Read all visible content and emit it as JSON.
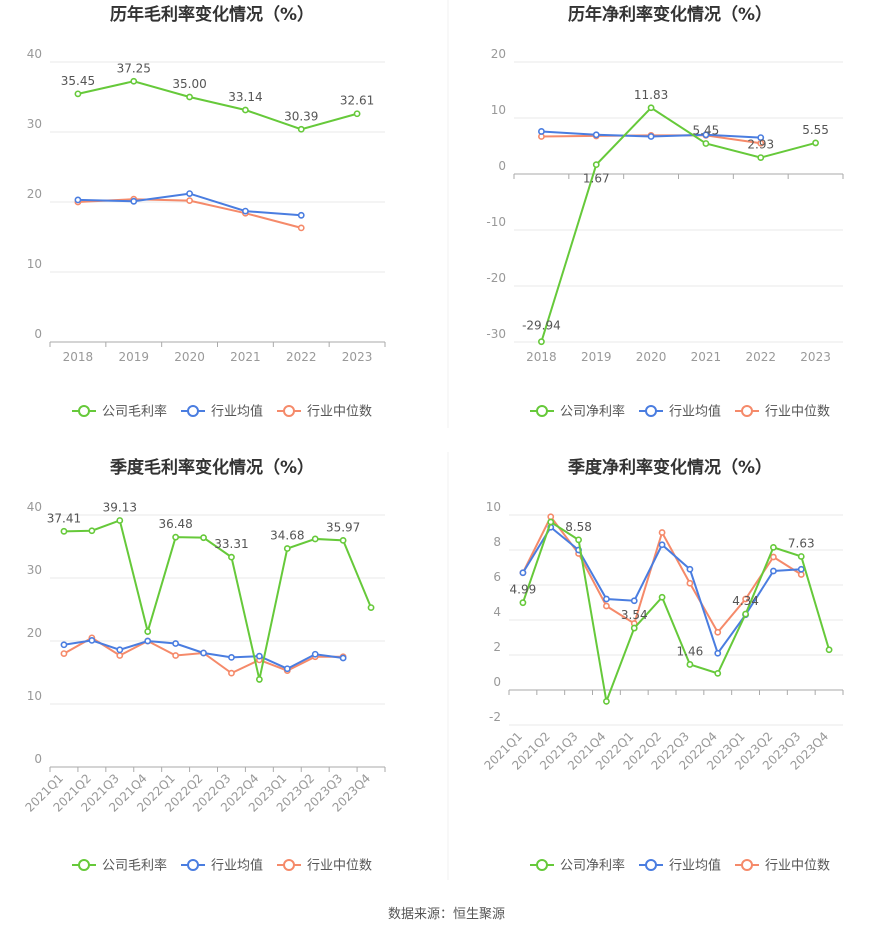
{
  "source_text": "数据来源：恒生聚源",
  "colors": {
    "company": "#66c93a",
    "avg": "#4a7de0",
    "median": "#f58a6a",
    "axis": "#999999",
    "grid": "#e8e8e8",
    "title": "#333333",
    "label": "#555555"
  },
  "chart_data": [
    {
      "type": "line",
      "title": "历年毛利率变化情况（%）",
      "categories": [
        "2018",
        "2019",
        "2020",
        "2021",
        "2022",
        "2023"
      ],
      "ylim": [
        0,
        40
      ],
      "yticks": [
        0,
        10,
        20,
        30,
        40
      ],
      "grid": true,
      "legend_position": "bottom",
      "series": [
        {
          "name": "公司毛利率",
          "values": [
            35.45,
            37.25,
            35.0,
            33.14,
            30.39,
            32.61
          ]
        },
        {
          "name": "行业均值",
          "values": [
            20.3,
            20.1,
            21.2,
            18.7,
            18.1,
            null
          ]
        },
        {
          "name": "行业中位数",
          "values": [
            20.0,
            20.4,
            20.2,
            18.4,
            16.3,
            null
          ]
        }
      ],
      "data_labels": [
        {
          "i": 0,
          "text": "35.45"
        },
        {
          "i": 1,
          "text": "37.25"
        },
        {
          "i": 2,
          "text": "35.00"
        },
        {
          "i": 3,
          "text": "33.14"
        },
        {
          "i": 4,
          "text": "30.39"
        },
        {
          "i": 5,
          "text": "32.61"
        }
      ]
    },
    {
      "type": "line",
      "title": "历年净利率变化情况（%）",
      "categories": [
        "2018",
        "2019",
        "2020",
        "2021",
        "2022",
        "2023"
      ],
      "ylim": [
        -30,
        20
      ],
      "yticks": [
        -30,
        -20,
        -10,
        0,
        10,
        20
      ],
      "grid": true,
      "legend_position": "bottom",
      "series": [
        {
          "name": "公司净利率",
          "values": [
            -29.94,
            1.67,
            11.83,
            5.45,
            2.93,
            5.55
          ]
        },
        {
          "name": "行业均值",
          "values": [
            7.6,
            7.0,
            6.7,
            7.0,
            6.5,
            null
          ]
        },
        {
          "name": "行业中位数",
          "values": [
            6.7,
            6.8,
            6.9,
            6.9,
            5.5,
            null
          ]
        }
      ],
      "data_labels": [
        {
          "i": 0,
          "text": "-29.94",
          "pos": "above"
        },
        {
          "i": 1,
          "text": "1.67",
          "pos": "below"
        },
        {
          "i": 2,
          "text": "11.83"
        },
        {
          "i": 3,
          "text": "5.45"
        },
        {
          "i": 4,
          "text": "2.93"
        },
        {
          "i": 5,
          "text": "5.55"
        }
      ]
    },
    {
      "type": "line",
      "title": "季度毛利率变化情况（%）",
      "categories": [
        "2021Q1",
        "2021Q2",
        "2021Q3",
        "2021Q4",
        "2022Q1",
        "2022Q2",
        "2022Q3",
        "2022Q4",
        "2023Q1",
        "2023Q2",
        "2023Q3",
        "2023Q4"
      ],
      "ylim": [
        0,
        40
      ],
      "yticks": [
        0,
        10,
        20,
        30,
        40
      ],
      "grid": true,
      "legend_position": "bottom",
      "series": [
        {
          "name": "公司毛利率",
          "values": [
            37.41,
            37.5,
            39.13,
            21.5,
            36.48,
            36.4,
            33.31,
            13.9,
            34.68,
            36.2,
            35.97,
            25.3
          ]
        },
        {
          "name": "行业均值",
          "values": [
            19.4,
            20.1,
            18.6,
            20.0,
            19.6,
            18.1,
            17.4,
            17.6,
            15.6,
            17.9,
            17.3,
            null
          ]
        },
        {
          "name": "行业中位数",
          "values": [
            18.0,
            20.5,
            17.7,
            20.0,
            17.7,
            18.1,
            14.9,
            17.0,
            15.3,
            17.5,
            17.5,
            null
          ]
        }
      ],
      "data_labels": [
        {
          "i": 0,
          "text": "37.41"
        },
        {
          "i": 2,
          "text": "39.13"
        },
        {
          "i": 4,
          "text": "36.48"
        },
        {
          "i": 6,
          "text": "33.31"
        },
        {
          "i": 8,
          "text": "34.68"
        },
        {
          "i": 10,
          "text": "35.97"
        }
      ]
    },
    {
      "type": "line",
      "title": "季度净利率变化情况（%）",
      "categories": [
        "2021Q1",
        "2021Q2",
        "2021Q3",
        "2021Q4",
        "2022Q1",
        "2022Q2",
        "2022Q3",
        "2022Q4",
        "2023Q1",
        "2023Q2",
        "2023Q3",
        "2023Q4"
      ],
      "ylim": [
        -2,
        10
      ],
      "yticks": [
        -2,
        0,
        2,
        4,
        6,
        8,
        10
      ],
      "grid": true,
      "legend_position": "bottom",
      "series": [
        {
          "name": "公司净利率",
          "values": [
            4.99,
            9.6,
            8.58,
            -0.65,
            3.54,
            5.3,
            1.46,
            0.95,
            4.34,
            8.15,
            7.63,
            2.3
          ]
        },
        {
          "name": "行业均值",
          "values": [
            6.7,
            9.3,
            8.0,
            5.2,
            5.1,
            8.3,
            6.9,
            2.1,
            4.3,
            6.8,
            6.9,
            null
          ]
        },
        {
          "name": "行业中位数",
          "values": [
            6.7,
            9.9,
            7.8,
            4.8,
            3.8,
            9.0,
            6.1,
            3.3,
            5.2,
            7.6,
            6.6,
            null
          ]
        }
      ],
      "data_labels": [
        {
          "i": 0,
          "text": "4.99"
        },
        {
          "i": 2,
          "text": "8.58"
        },
        {
          "i": 4,
          "text": "3.54"
        },
        {
          "i": 6,
          "text": "1.46"
        },
        {
          "i": 8,
          "text": "4.34"
        },
        {
          "i": 10,
          "text": "7.63"
        }
      ]
    }
  ]
}
